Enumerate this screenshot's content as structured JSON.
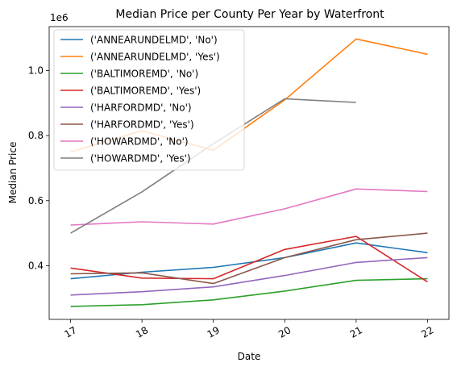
{
  "chart_data": {
    "type": "line",
    "title": "Median Price per County Per Year by Waterfront",
    "xlabel": "Date",
    "ylabel": "Median Price",
    "y_offset_label": "1e6",
    "x": [
      17,
      18,
      19,
      20,
      21,
      22
    ],
    "x_tick_labels": [
      "17",
      "18",
      "19",
      "20",
      "21",
      "22"
    ],
    "xlim": [
      16.7,
      22.3
    ],
    "ylim": [
      0.235,
      1.135
    ],
    "y_ticks": [
      0.4,
      0.6,
      0.8,
      1.0
    ],
    "y_tick_labels": [
      "0.4",
      "0.6",
      "0.8",
      "1.0"
    ],
    "grid": false,
    "legend_position": "top-left",
    "series": [
      {
        "name": "('ANNEARUNDELMD', 'No')",
        "color": "#1f77b4",
        "values": [
          0.36,
          0.38,
          0.395,
          0.425,
          0.47,
          0.44
        ]
      },
      {
        "name": "('ANNEARUNDELMD', 'Yes')",
        "color": "#ff7f0e",
        "values": [
          0.75,
          0.815,
          0.755,
          0.91,
          1.097,
          1.05
        ]
      },
      {
        "name": "('BALTIMOREMD', 'No')",
        "color": "#2ca02c",
        "values": [
          0.275,
          0.28,
          0.295,
          0.322,
          0.355,
          0.36
        ]
      },
      {
        "name": "('BALTIMOREMD', 'Yes')",
        "color": "#d62728",
        "values": [
          0.393,
          0.362,
          0.36,
          0.45,
          0.49,
          0.35
        ]
      },
      {
        "name": "('HARFORDMD', 'No')",
        "color": "#9467bd",
        "values": [
          0.31,
          0.32,
          0.335,
          0.37,
          0.41,
          0.425
        ]
      },
      {
        "name": "('HARFORDMD', 'Yes')",
        "color": "#8c564b",
        "values": [
          0.375,
          0.378,
          0.345,
          0.425,
          0.48,
          0.5
        ]
      },
      {
        "name": "('HOWARDMD', 'No')",
        "color": "#e377c2",
        "values": [
          0.525,
          0.535,
          0.528,
          0.575,
          0.636,
          0.628
        ]
      },
      {
        "name": "('HOWARDMD', 'Yes')",
        "color": "#7f7f7f",
        "values": [
          0.5,
          0.627,
          0.775,
          0.913,
          0.902,
          null
        ]
      }
    ]
  }
}
